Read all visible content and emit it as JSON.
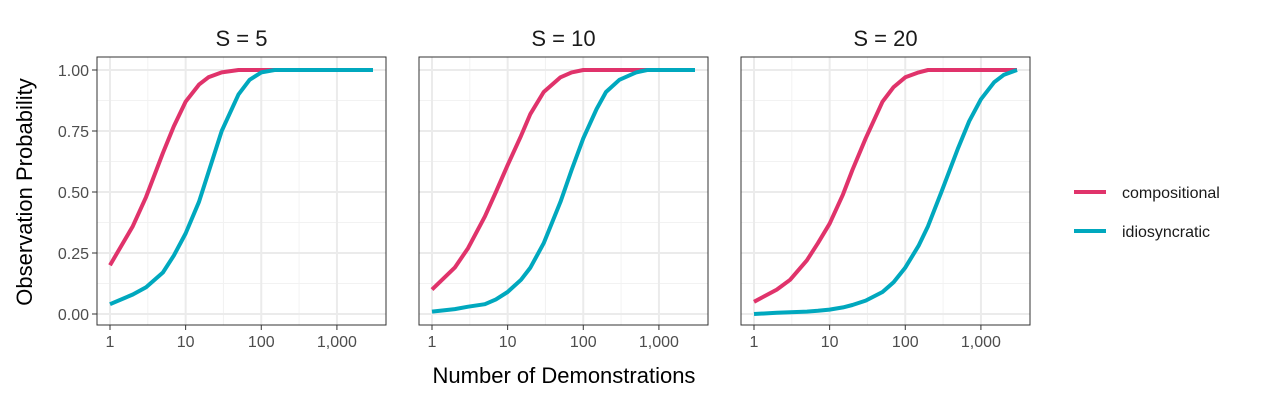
{
  "chart_data": {
    "type": "line",
    "xlabel": "Number of Demonstrations",
    "ylabel": "Observation Probability",
    "x_scale": "log10",
    "xlim": [
      1,
      3000
    ],
    "ylim": [
      0,
      1
    ],
    "x_ticks": [
      1,
      10,
      100,
      1000
    ],
    "x_tick_labels": [
      "1",
      "10",
      "100",
      "1,000"
    ],
    "y_ticks": [
      0,
      0.25,
      0.5,
      0.75,
      1
    ],
    "y_tick_labels": [
      "0.00",
      "0.25",
      "0.50",
      "0.75",
      "1.00"
    ],
    "grid": true,
    "legend": {
      "position": "right",
      "entries": [
        {
          "name": "compositional",
          "color": "#e0336b"
        },
        {
          "name": "idiosyncratic",
          "color": "#00a8be"
        }
      ]
    },
    "x": [
      1,
      2,
      3,
      5,
      7,
      10,
      15,
      20,
      30,
      50,
      70,
      100,
      150,
      200,
      300,
      500,
      700,
      1000,
      1500,
      2000,
      3000
    ],
    "panels": [
      {
        "title": "S = 5",
        "series": [
          {
            "name": "compositional",
            "color": "#e0336b",
            "values": [
              0.2,
              0.36,
              0.48,
              0.66,
              0.77,
              0.87,
              0.94,
              0.97,
              0.99,
              1.0,
              1.0,
              1.0,
              1.0,
              1.0,
              1.0,
              1.0,
              1.0,
              1.0,
              1.0,
              1.0,
              1.0
            ]
          },
          {
            "name": "idiosyncratic",
            "color": "#00a8be",
            "values": [
              0.04,
              0.08,
              0.11,
              0.17,
              0.24,
              0.33,
              0.46,
              0.58,
              0.75,
              0.9,
              0.96,
              0.99,
              1.0,
              1.0,
              1.0,
              1.0,
              1.0,
              1.0,
              1.0,
              1.0,
              1.0
            ]
          }
        ]
      },
      {
        "title": "S = 10",
        "series": [
          {
            "name": "compositional",
            "color": "#e0336b",
            "values": [
              0.1,
              0.19,
              0.27,
              0.4,
              0.5,
              0.61,
              0.73,
              0.82,
              0.91,
              0.97,
              0.99,
              1.0,
              1.0,
              1.0,
              1.0,
              1.0,
              1.0,
              1.0,
              1.0,
              1.0,
              1.0
            ]
          },
          {
            "name": "idiosyncratic",
            "color": "#00a8be",
            "values": [
              0.01,
              0.02,
              0.03,
              0.04,
              0.06,
              0.09,
              0.14,
              0.19,
              0.29,
              0.46,
              0.59,
              0.72,
              0.84,
              0.91,
              0.96,
              0.99,
              1.0,
              1.0,
              1.0,
              1.0,
              1.0
            ]
          }
        ]
      },
      {
        "title": "S = 20",
        "series": [
          {
            "name": "compositional",
            "color": "#e0336b",
            "values": [
              0.05,
              0.1,
              0.14,
              0.22,
              0.29,
              0.37,
              0.49,
              0.59,
              0.72,
              0.87,
              0.93,
              0.97,
              0.99,
              1.0,
              1.0,
              1.0,
              1.0,
              1.0,
              1.0,
              1.0,
              1.0
            ]
          },
          {
            "name": "idiosyncratic",
            "color": "#00a8be",
            "values": [
              0.0,
              0.005,
              0.007,
              0.01,
              0.013,
              0.018,
              0.027,
              0.037,
              0.055,
              0.09,
              0.13,
              0.19,
              0.28,
              0.36,
              0.5,
              0.68,
              0.79,
              0.88,
              0.95,
              0.98,
              1.0
            ]
          }
        ]
      }
    ]
  }
}
